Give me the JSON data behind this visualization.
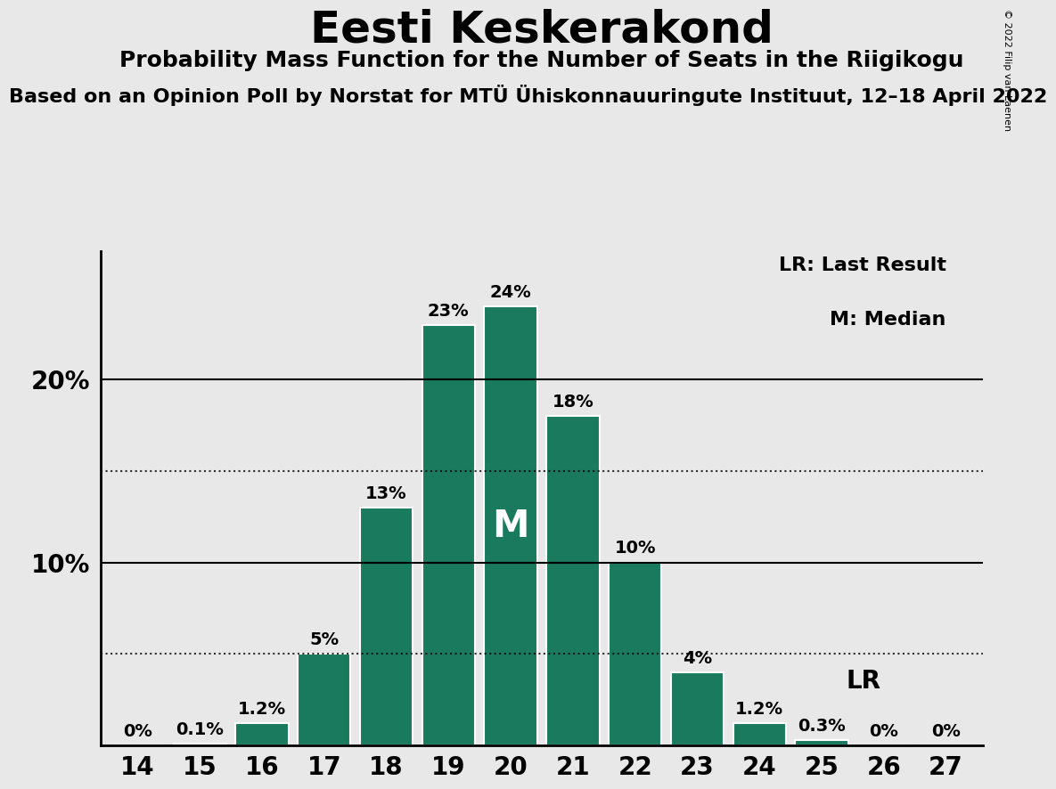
{
  "title": "Eesti Keskerakond",
  "subtitle": "Probability Mass Function for the Number of Seats in the Riigikogu",
  "source_line": "Based on an Opinion Poll by Norstat for MTÜ Ühiskonnauuringute Instituut, 12–18 April 2022",
  "copyright": "© 2022 Filip van Laenen",
  "categories": [
    14,
    15,
    16,
    17,
    18,
    19,
    20,
    21,
    22,
    23,
    24,
    25,
    26,
    27
  ],
  "values": [
    0.0,
    0.1,
    1.2,
    5.0,
    13.0,
    23.0,
    24.0,
    18.0,
    10.0,
    4.0,
    1.2,
    0.3,
    0.0,
    0.0
  ],
  "labels": [
    "0%",
    "0.1%",
    "1.2%",
    "5%",
    "13%",
    "23%",
    "24%",
    "18%",
    "10%",
    "4%",
    "1.2%",
    "0.3%",
    "0%",
    "0%"
  ],
  "bar_color": "#1a7a5e",
  "median_bar": 20,
  "last_result_bar": 25,
  "median_label": "M",
  "lr_label": "LR",
  "legend_lr": "LR: Last Result",
  "legend_m": "M: Median",
  "background_color": "#e8e8e8",
  "dotted_lines": [
    5.0,
    15.0
  ],
  "solid_lines": [
    10.0,
    20.0
  ],
  "ylim": [
    0,
    27
  ],
  "title_fontsize": 36,
  "subtitle_fontsize": 18,
  "source_fontsize": 16,
  "label_fontsize": 14,
  "tick_fontsize": 20,
  "ytick_vals": [
    10,
    20
  ],
  "ytick_labels": [
    "10%",
    "20%"
  ]
}
